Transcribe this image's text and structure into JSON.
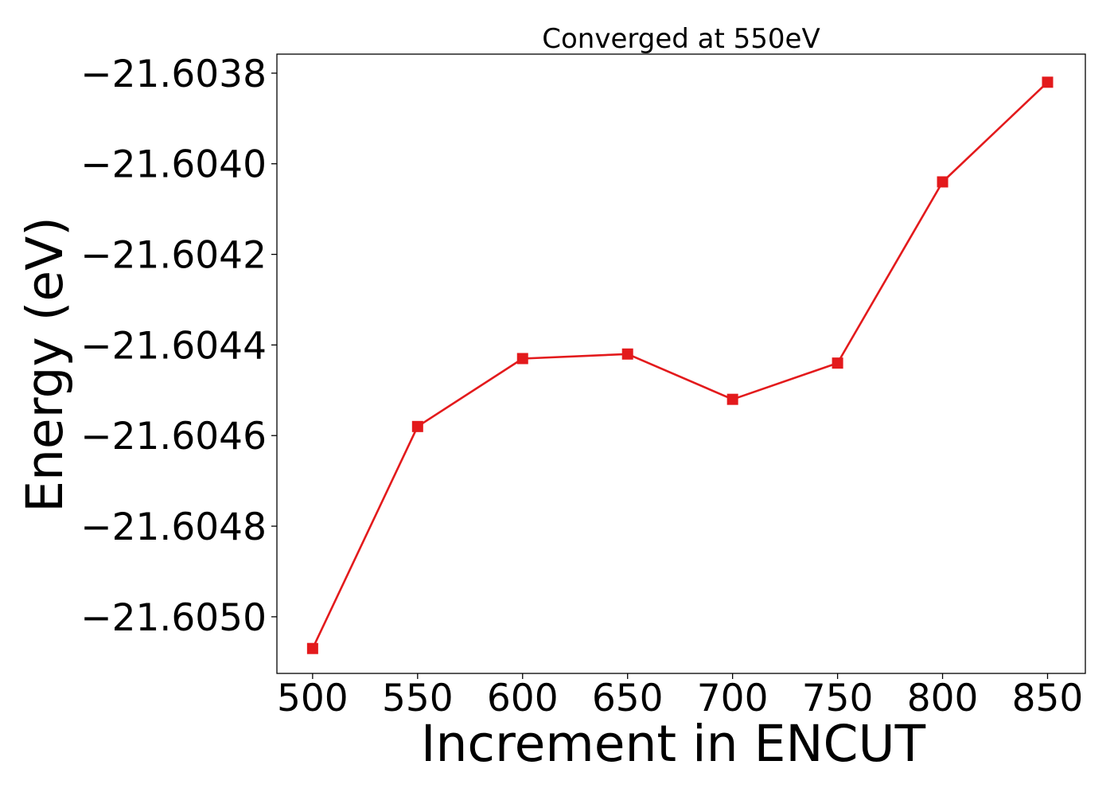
{
  "chart_data": {
    "type": "line",
    "title": "Converged at 550eV",
    "xlabel": "Increment in ENCUT",
    "ylabel": "Energy (eV)",
    "x": [
      500,
      550,
      600,
      650,
      700,
      750,
      800,
      850
    ],
    "series": [
      {
        "values": [
          -21.60507,
          -21.60458,
          -21.60443,
          -21.60442,
          -21.60452,
          -21.60444,
          -21.60404,
          -21.60382
        ],
        "color": "#e31a1c",
        "marker": "square"
      }
    ],
    "x_ticks": [
      500,
      550,
      600,
      650,
      700,
      750,
      800,
      850
    ],
    "x_tick_labels": [
      "500",
      "550",
      "600",
      "650",
      "700",
      "750",
      "800",
      "850"
    ],
    "y_ticks": [
      -21.6038,
      -21.604,
      -21.6042,
      -21.6044,
      -21.6046,
      -21.6048,
      -21.605
    ],
    "y_tick_labels": [
      "−21.6038",
      "−21.6040",
      "−21.6042",
      "−21.6044",
      "−21.6046",
      "−21.6048",
      "−21.6050"
    ],
    "xlim": [
      483,
      868
    ],
    "ylim": [
      -21.605125,
      -21.603758
    ],
    "grid": false,
    "legend": false
  }
}
